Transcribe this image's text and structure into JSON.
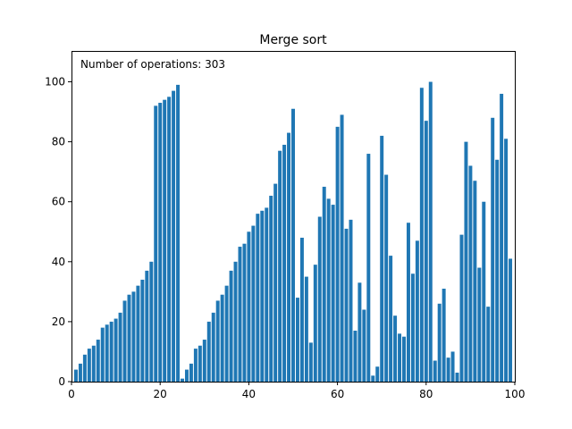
{
  "chart_data": {
    "type": "bar",
    "title": "Merge sort",
    "xlabel": "",
    "ylabel": "",
    "annotation": "Number of operations: 303",
    "xlim": [
      0,
      100
    ],
    "ylim": [
      0,
      110
    ],
    "xticks": [
      0,
      20,
      40,
      60,
      80,
      100
    ],
    "yticks": [
      0,
      20,
      40,
      60,
      80,
      100
    ],
    "bar_color": "#1f77b4",
    "grid": false,
    "x": [
      1,
      2,
      3,
      4,
      5,
      6,
      7,
      8,
      9,
      10,
      11,
      12,
      13,
      14,
      15,
      16,
      17,
      18,
      19,
      20,
      21,
      22,
      23,
      24,
      25,
      26,
      27,
      28,
      29,
      30,
      31,
      32,
      33,
      34,
      35,
      36,
      37,
      38,
      39,
      40,
      41,
      42,
      43,
      44,
      45,
      46,
      47,
      48,
      49,
      50,
      51,
      52,
      53,
      54,
      55,
      56,
      57,
      58,
      59,
      60,
      61,
      62,
      63,
      64,
      65,
      66,
      67,
      68,
      69,
      70,
      71,
      72,
      73,
      74,
      75,
      76,
      77,
      78,
      79,
      80,
      81,
      82,
      83,
      84,
      85,
      86,
      87,
      88,
      89,
      90,
      91,
      92,
      93,
      94,
      95,
      96,
      97,
      98,
      99
    ],
    "values": [
      4,
      6,
      9,
      11,
      12,
      14,
      18,
      19,
      20,
      21,
      23,
      27,
      29,
      30,
      32,
      34,
      37,
      40,
      92,
      93,
      94,
      95,
      97,
      99,
      1,
      4,
      6,
      11,
      12,
      14,
      20,
      23,
      27,
      29,
      32,
      37,
      40,
      45,
      46,
      50,
      52,
      56,
      57,
      58,
      62,
      66,
      77,
      79,
      83,
      91,
      28,
      48,
      35,
      13,
      39,
      55,
      65,
      61,
      59,
      85,
      89,
      51,
      54,
      17,
      33,
      24,
      76,
      2,
      5,
      82,
      69,
      42,
      22,
      16,
      15,
      53,
      36,
      47,
      98,
      87,
      100,
      7,
      26,
      31,
      8,
      10,
      3,
      49,
      80,
      72,
      67,
      38,
      60,
      25,
      88,
      74,
      96,
      81,
      41
    ]
  }
}
